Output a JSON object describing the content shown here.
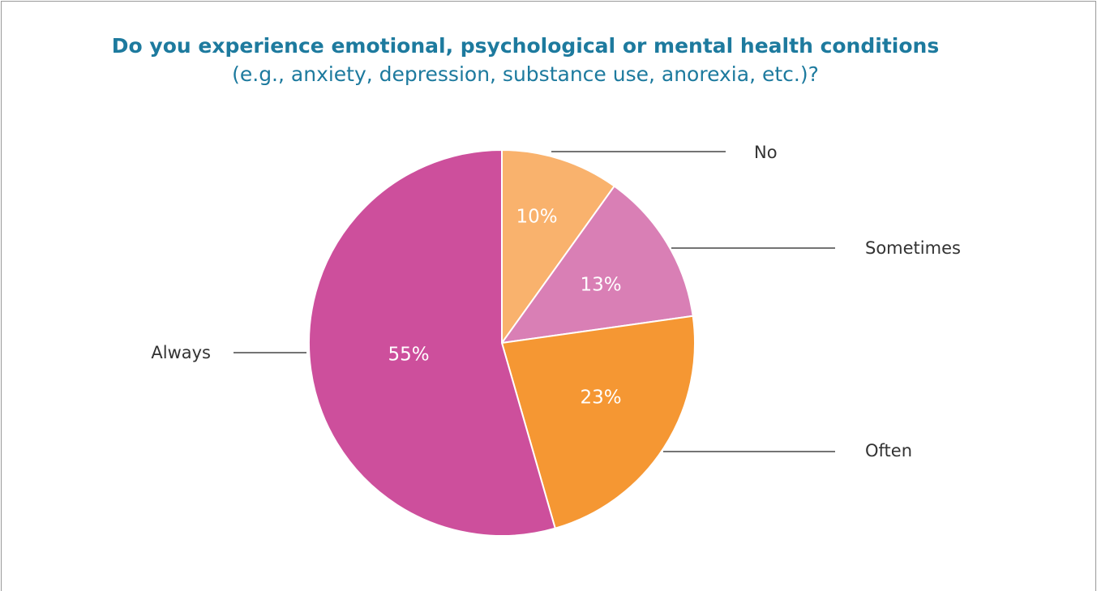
{
  "chart_data": {
    "type": "pie",
    "title": "Do you experience emotional, psychological or mental health conditions",
    "subtitle": "(e.g., anxiety, depression, substance use, anorexia, etc.)?",
    "categories": [
      "No",
      "Sometimes",
      "Often",
      "Always"
    ],
    "values": [
      10,
      13,
      23,
      55
    ],
    "value_labels": [
      "10%",
      "13%",
      "23%",
      "55%"
    ],
    "colors": [
      "#f9b26d",
      "#d97fb5",
      "#f59733",
      "#cd4f9c"
    ]
  }
}
